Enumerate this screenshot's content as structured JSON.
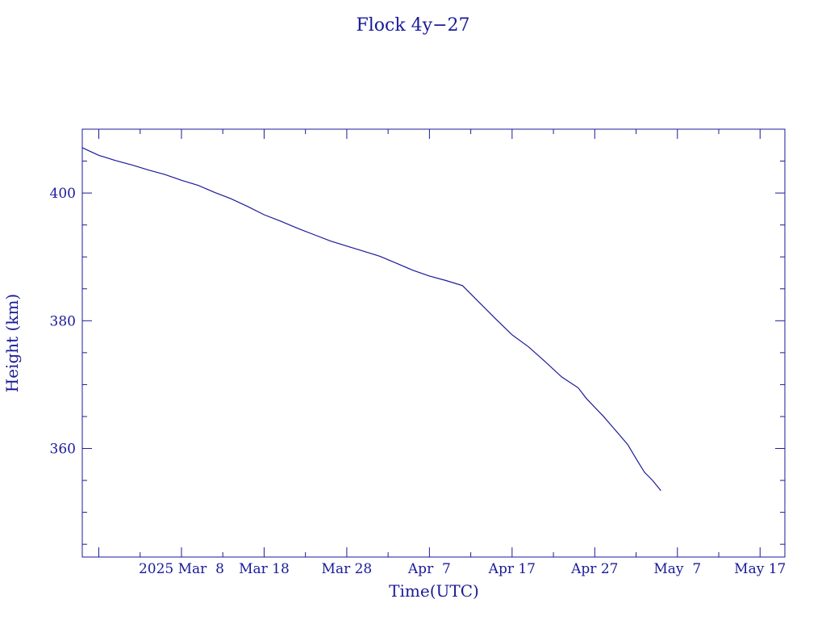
{
  "chart_data": {
    "type": "line",
    "title": "Flock 4y−27",
    "xlabel": "Time(UTC)",
    "ylabel": "Height (km)",
    "x_type": "date",
    "xlim": [
      "2025-02-24",
      "2025-05-20"
    ],
    "ylim": [
      343,
      410
    ],
    "yticks": [
      360,
      380,
      400
    ],
    "ytick_labels": [
      "360",
      "380",
      "400"
    ],
    "xtick_labels": [
      "2025 Mar  8",
      "Mar 18",
      "Mar 28",
      "Apr  7",
      "Apr 17",
      "Apr 27",
      "May  7",
      "May 17"
    ],
    "xticks": [
      "2025-03-08",
      "2025-03-18",
      "2025-03-28",
      "2025-04-07",
      "2025-04-17",
      "2025-04-27",
      "2025-05-07",
      "2025-05-17"
    ],
    "series": [
      {
        "color": "#1a1a99",
        "x": [
          "2025-02-24",
          "2025-02-25",
          "2025-02-26",
          "2025-02-28",
          "2025-03-02",
          "2025-03-04",
          "2025-03-06",
          "2025-03-08",
          "2025-03-10",
          "2025-03-12",
          "2025-03-14",
          "2025-03-16",
          "2025-03-18",
          "2025-03-20",
          "2025-03-22",
          "2025-03-24",
          "2025-03-26",
          "2025-03-28",
          "2025-03-30",
          "2025-04-01",
          "2025-04-03",
          "2025-04-05",
          "2025-04-07",
          "2025-04-09",
          "2025-04-11",
          "2025-04-13",
          "2025-04-15",
          "2025-04-17",
          "2025-04-19",
          "2025-04-21",
          "2025-04-23",
          "2025-04-25",
          "2025-04-26",
          "2025-04-28",
          "2025-04-30",
          "2025-05-01",
          "2025-05-02",
          "2025-05-03",
          "2025-05-04",
          "2025-05-05"
        ],
        "y": [
          407.1,
          406.5,
          405.9,
          405.1,
          404.4,
          403.6,
          402.9,
          402.0,
          401.2,
          400.1,
          399.1,
          397.9,
          396.6,
          395.6,
          394.5,
          393.5,
          392.5,
          391.7,
          390.9,
          390.1,
          389.0,
          387.9,
          387.0,
          386.3,
          385.5,
          382.9,
          380.3,
          377.8,
          375.9,
          373.6,
          371.2,
          369.5,
          367.8,
          365.1,
          362.1,
          360.6,
          358.4,
          356.3,
          355.0,
          353.4
        ]
      }
    ]
  }
}
